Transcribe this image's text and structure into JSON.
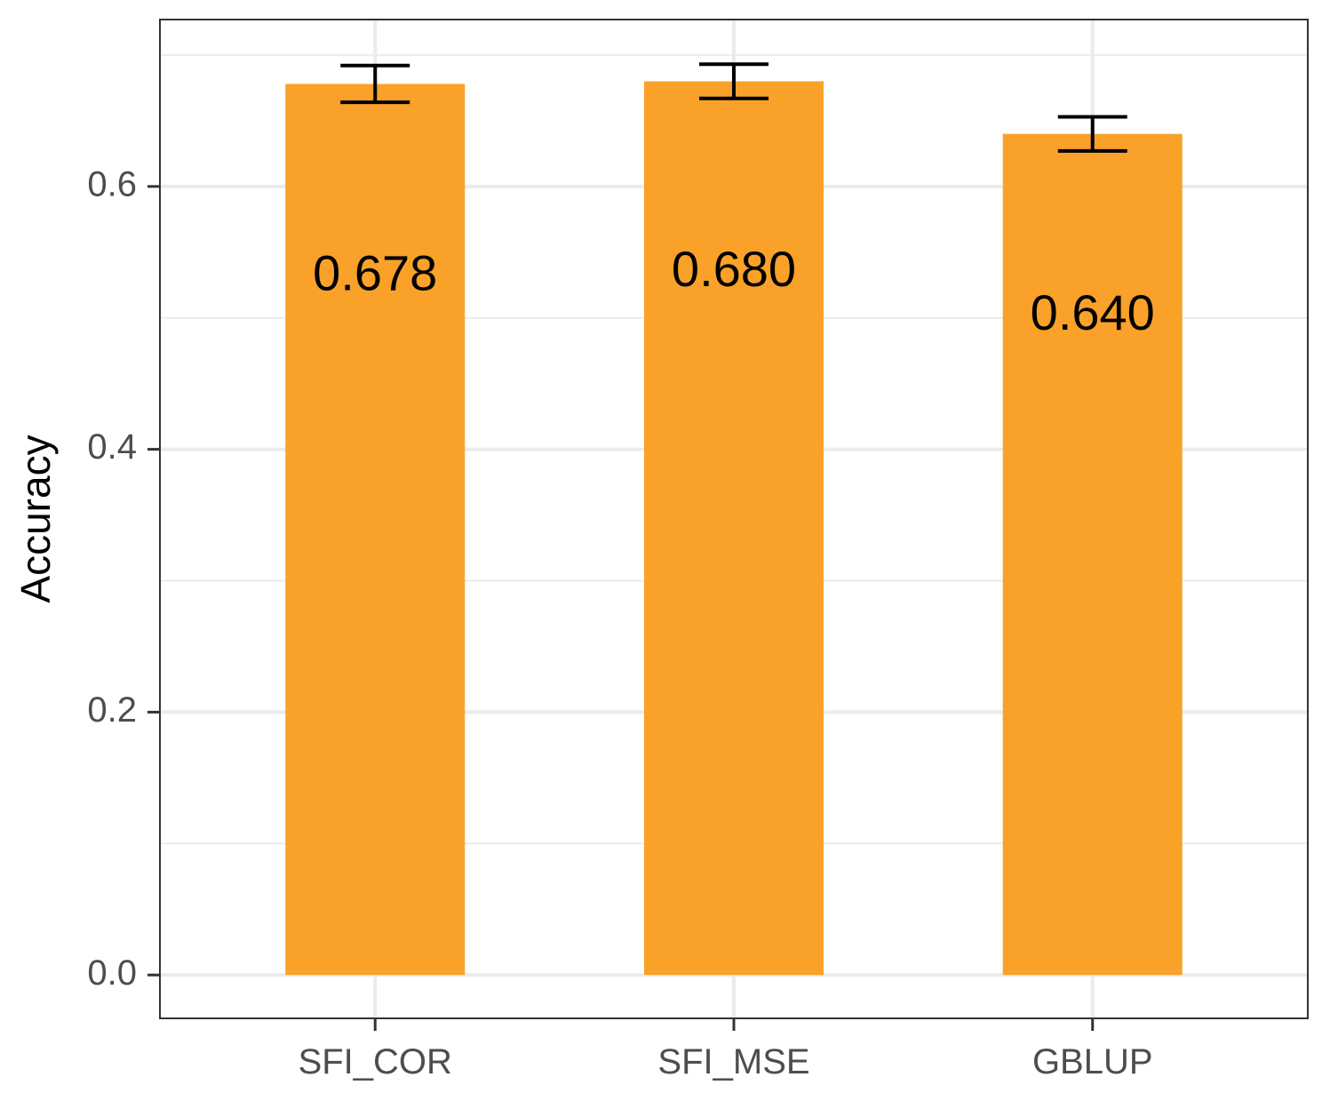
{
  "chart_data": {
    "type": "bar",
    "categories": [
      "SFI_COR",
      "SFI_MSE",
      "GBLUP"
    ],
    "values": [
      0.678,
      0.68,
      0.64
    ],
    "error_bars": [
      {
        "low": 0.664,
        "high": 0.692
      },
      {
        "low": 0.667,
        "high": 0.693
      },
      {
        "low": 0.627,
        "high": 0.653
      }
    ],
    "data_labels": [
      "0.678",
      "0.680",
      "0.640"
    ],
    "label_positions": [
      0.531,
      0.534,
      0.501
    ],
    "title": "",
    "xlabel": "",
    "ylabel": "Accuracy",
    "ylim": [
      -0.033,
      0.727
    ],
    "yticks": [
      0.0,
      0.2,
      0.4,
      0.6
    ],
    "ytick_labels": [
      "0.0",
      "0.2",
      "0.4",
      "0.6"
    ],
    "minor_gridlines": [
      0.1,
      0.3,
      0.5,
      0.7
    ],
    "grid": true,
    "legend": "none",
    "colors": {
      "bar": "#F9A128",
      "error_bar": "#000000",
      "grid": "#EBEBEB",
      "panel_border": "#333333",
      "tick_text": "#4D4D4D",
      "tick_mark": "#333333"
    }
  }
}
